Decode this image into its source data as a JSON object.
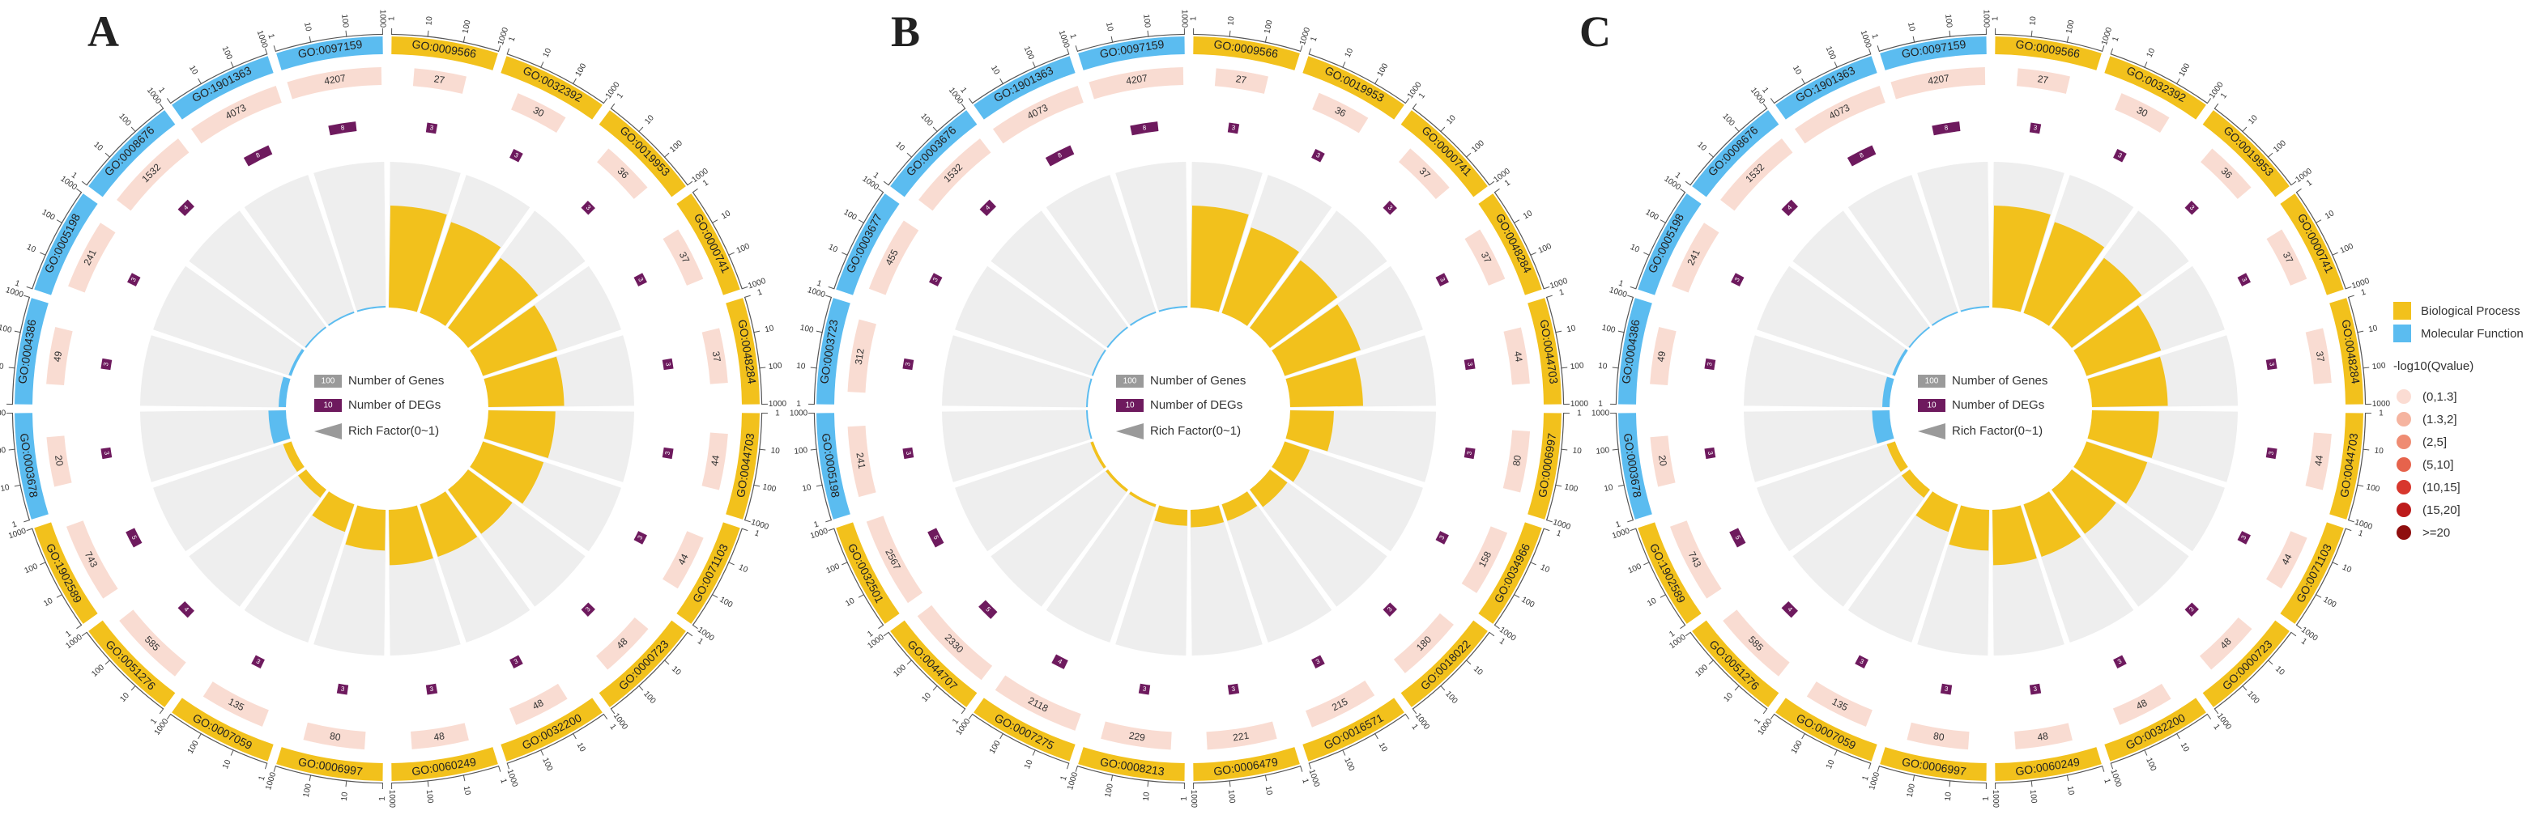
{
  "panels": [
    "A",
    "B",
    "C"
  ],
  "chart_data": [
    {
      "type": "circular-go-enrichment",
      "panel": "A",
      "terms": [
        "GO:0009566",
        "GO:0032392",
        "GO:0019953",
        "GO:0000741",
        "GO:0048284",
        "GO:0044703",
        "GO:0071103",
        "GO:0000723",
        "GO:0032200",
        "GO:0060249",
        "GO:0006997",
        "GO:0007059",
        "GO:0051276",
        "GO:1902589",
        "GO:0003678",
        "GO:0004386",
        "GO:0005198",
        "GO:0008676",
        "GO:1901363",
        "GO:0097159"
      ],
      "categories": [
        "BP",
        "BP",
        "BP",
        "BP",
        "BP",
        "BP",
        "BP",
        "BP",
        "BP",
        "BP",
        "BP",
        "BP",
        "BP",
        "BP",
        "MF",
        "MF",
        "MF",
        "MF",
        "MF",
        "MF"
      ],
      "num_genes": [
        "27",
        "30",
        "36",
        "37",
        "37",
        "44",
        "44",
        "48",
        "48",
        "48",
        "80",
        "135",
        "585",
        "743",
        "20",
        "49",
        "241",
        "1532",
        "4073",
        "4207"
      ],
      "num_degs": [
        "3",
        "3",
        "3",
        "3",
        "3",
        "3",
        "3",
        "3",
        "3",
        "3",
        "3",
        "3",
        "4",
        "5",
        "3",
        "3",
        "3",
        "4",
        "8",
        "8"
      ],
      "rich_factor": [
        0.7,
        0.66,
        0.6,
        0.54,
        0.52,
        0.46,
        0.44,
        0.38,
        0.38,
        0.38,
        0.28,
        0.2,
        0.07,
        0.06,
        0.12,
        0.05,
        0.02,
        0.01,
        0.01,
        0.01
      ]
    },
    {
      "type": "circular-go-enrichment",
      "panel": "B",
      "terms": [
        "GO:0009566",
        "GO:0019953",
        "GO:0000741",
        "GO:0048284",
        "GO:0044703",
        "GO:0006997",
        "GO:0034966",
        "GO:0018022",
        "GO:0016571",
        "GO:0006479",
        "GO:0008213",
        "GO:0007275",
        "GO:0044707",
        "GO:0032501",
        "GO:0005198",
        "GO:0003723",
        "GO:0003677",
        "GO:0003676",
        "GO:1901363",
        "GO:0097159"
      ],
      "categories": [
        "BP",
        "BP",
        "BP",
        "BP",
        "BP",
        "BP",
        "BP",
        "BP",
        "BP",
        "BP",
        "BP",
        "BP",
        "BP",
        "BP",
        "MF",
        "MF",
        "MF",
        "MF",
        "MF",
        "MF"
      ],
      "num_genes": [
        "27",
        "36",
        "37",
        "37",
        "44",
        "80",
        "158",
        "180",
        "215",
        "221",
        "229",
        "2118",
        "2330",
        "2567",
        "241",
        "312",
        "455",
        "1532",
        "4073",
        "4207"
      ],
      "num_degs": [
        "3",
        "3",
        "3",
        "3",
        "3",
        "3",
        "3",
        "3",
        "3",
        "3",
        "3",
        "4",
        "5",
        "5",
        "3",
        "3",
        "3",
        "4",
        "8",
        "8"
      ],
      "rich_factor": [
        0.7,
        0.62,
        0.58,
        0.55,
        0.5,
        0.3,
        0.18,
        0.15,
        0.12,
        0.12,
        0.11,
        0.02,
        0.02,
        0.02,
        0.01,
        0.01,
        0.01,
        0.01,
        0.01,
        0.01
      ]
    },
    {
      "type": "circular-go-enrichment",
      "panel": "C",
      "terms": [
        "GO:0009566",
        "GO:0032392",
        "GO:0019953",
        "GO:0000741",
        "GO:0048284",
        "GO:0044703",
        "GO:0071103",
        "GO:0000723",
        "GO:0032200",
        "GO:0060249",
        "GO:0006997",
        "GO:0007059",
        "GO:0051276",
        "GO:1902589",
        "GO:0003678",
        "GO:0004386",
        "GO:0005198",
        "GO:0008676",
        "GO:1901363",
        "GO:0097159"
      ],
      "categories": [
        "BP",
        "BP",
        "BP",
        "BP",
        "BP",
        "BP",
        "BP",
        "BP",
        "BP",
        "BP",
        "BP",
        "BP",
        "BP",
        "BP",
        "MF",
        "MF",
        "MF",
        "MF",
        "MF",
        "MF"
      ],
      "num_genes": [
        "27",
        "30",
        "36",
        "37",
        "37",
        "44",
        "44",
        "48",
        "48",
        "48",
        "80",
        "135",
        "585",
        "743",
        "20",
        "49",
        "241",
        "1532",
        "4073",
        "4207"
      ],
      "num_degs": [
        "3",
        "3",
        "3",
        "3",
        "3",
        "3",
        "3",
        "3",
        "3",
        "3",
        "3",
        "3",
        "4",
        "5",
        "3",
        "3",
        "3",
        "4",
        "8",
        "8"
      ],
      "rich_factor": [
        0.7,
        0.66,
        0.6,
        0.54,
        0.52,
        0.46,
        0.44,
        0.38,
        0.38,
        0.38,
        0.28,
        0.2,
        0.07,
        0.06,
        0.12,
        0.05,
        0.02,
        0.01,
        0.01,
        0.01
      ]
    }
  ],
  "ring_ticks": [
    "1",
    "10",
    "100",
    "1000"
  ],
  "inner_legend": {
    "genes_value": "100",
    "genes_label": "Number of Genes",
    "degs_value": "10",
    "degs_label": "Number of DEGs",
    "rich_label": "Rich Factor(0~1)"
  },
  "legend": {
    "bp_label": "Biological Process",
    "mf_label": "Molecular Function",
    "q_title": "-log10(Qvalue)",
    "q_bins": [
      "(0,1.3]",
      "(1.3,2]",
      "(2,5]",
      "(5,10]",
      "(10,15]",
      "(15,20]",
      ">=20"
    ]
  },
  "colors": {
    "bp": "#f2c11c",
    "mf": "#5bbcf0",
    "degs": "#6e1a5e",
    "genes_bar": "#f9dcd2",
    "genes_sw": "#9a9a9a",
    "rich_bg": "#eeeeee",
    "q_bins": [
      "#fbdcd3",
      "#f5b4a0",
      "#ef8c73",
      "#e6634c",
      "#d8372d",
      "#bd1b1b",
      "#8f0e0e"
    ]
  }
}
